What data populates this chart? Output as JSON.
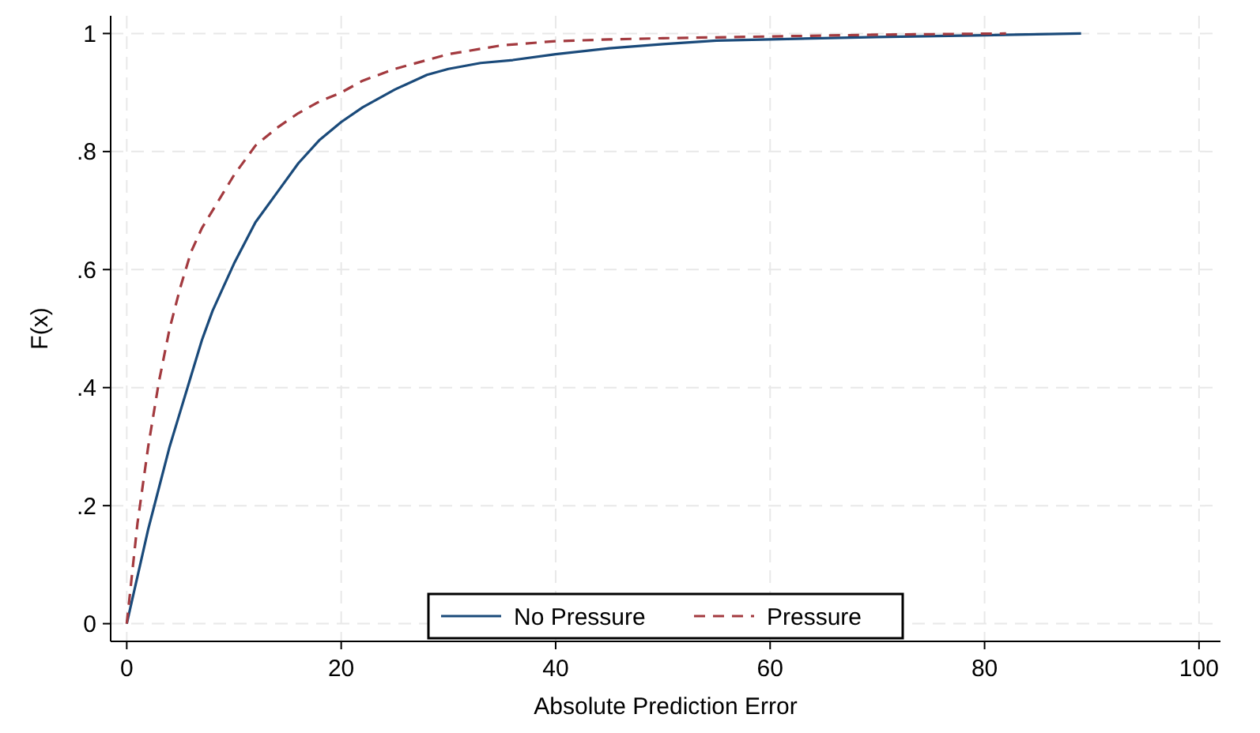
{
  "chart_data": {
    "type": "line",
    "xlabel": "Absolute Prediction Error",
    "ylabel": "F(x)",
    "xlim": [
      -1.5,
      102
    ],
    "ylim": [
      -0.03,
      1.03
    ],
    "xticks": [
      0,
      20,
      40,
      60,
      80,
      100
    ],
    "yticks": [
      0,
      {
        "value": 0.2,
        "label": ".2"
      },
      {
        "value": 0.4,
        "label": ".4"
      },
      {
        "value": 0.6,
        "label": ".6"
      },
      {
        "value": 0.8,
        "label": ".8"
      },
      1
    ],
    "grid": true,
    "legend": "bottom",
    "marker": "none",
    "series": [
      {
        "name": "No Pressure",
        "color": "#1a4a7a",
        "line_style": "solid",
        "x": [
          0,
          1,
          2,
          3,
          4,
          5,
          6,
          7,
          8,
          9,
          10,
          12,
          14,
          16,
          18,
          20,
          22,
          25,
          28,
          30,
          33,
          36,
          40,
          45,
          50,
          55,
          60,
          70,
          80,
          89
        ],
        "values": [
          0,
          0.08,
          0.16,
          0.23,
          0.3,
          0.36,
          0.42,
          0.48,
          0.53,
          0.57,
          0.61,
          0.68,
          0.73,
          0.78,
          0.82,
          0.85,
          0.875,
          0.905,
          0.93,
          0.94,
          0.95,
          0.955,
          0.965,
          0.975,
          0.982,
          0.988,
          0.99,
          0.994,
          0.997,
          1
        ]
      },
      {
        "name": "Pressure",
        "color": "#a33a3f",
        "line_style": "dashed",
        "x": [
          0,
          1,
          2,
          3,
          4,
          5,
          6,
          7,
          8,
          9,
          10,
          12,
          14,
          16,
          18,
          20,
          22,
          25,
          28,
          30,
          35,
          40,
          45,
          50,
          60,
          70,
          82
        ],
        "values": [
          0,
          0.17,
          0.3,
          0.41,
          0.5,
          0.57,
          0.63,
          0.67,
          0.7,
          0.73,
          0.76,
          0.81,
          0.84,
          0.865,
          0.885,
          0.9,
          0.92,
          0.94,
          0.955,
          0.965,
          0.98,
          0.987,
          0.99,
          0.992,
          0.995,
          0.998,
          1
        ]
      }
    ]
  }
}
